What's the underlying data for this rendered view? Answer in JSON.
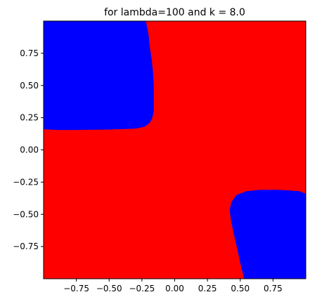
{
  "chart_data": {
    "type": "heatmap",
    "title": "for lambda=100 and k = 8.0",
    "xlabel": "",
    "ylabel": "",
    "xlim": [
      -1,
      1
    ],
    "ylim": [
      -1,
      1
    ],
    "grid": false,
    "legend": "none",
    "x_ticks": [
      {
        "value": -0.75,
        "label": "−0.75"
      },
      {
        "value": -0.5,
        "label": "−0.50"
      },
      {
        "value": -0.25,
        "label": "−0.25"
      },
      {
        "value": 0.0,
        "label": "0.00"
      },
      {
        "value": 0.25,
        "label": "0.25"
      },
      {
        "value": 0.5,
        "label": "0.50"
      },
      {
        "value": 0.75,
        "label": "0.75"
      }
    ],
    "y_ticks": [
      {
        "value": 0.75,
        "label": "0.75"
      },
      {
        "value": 0.5,
        "label": "0.50"
      },
      {
        "value": 0.25,
        "label": "0.25"
      },
      {
        "value": 0.0,
        "label": "0.00"
      },
      {
        "value": -0.25,
        "label": "−0.25"
      },
      {
        "value": -0.5,
        "label": "−0.50"
      },
      {
        "value": -0.75,
        "label": "−0.75"
      }
    ],
    "background_class_color": "#ff0000",
    "region_color": "#0000ff",
    "regions": [
      {
        "boundary": [
          [
            -1.0,
            1.0
          ],
          [
            -0.22,
            1.0
          ],
          [
            -0.2,
            0.9
          ],
          [
            -0.19,
            0.8
          ],
          [
            -0.175,
            0.7
          ],
          [
            -0.165,
            0.6
          ],
          [
            -0.16,
            0.5
          ],
          [
            -0.16,
            0.4
          ],
          [
            -0.16,
            0.3
          ],
          [
            -0.17,
            0.25
          ],
          [
            -0.19,
            0.21
          ],
          [
            -0.23,
            0.18
          ],
          [
            -0.3,
            0.165
          ],
          [
            -0.5,
            0.158
          ],
          [
            -0.75,
            0.155
          ],
          [
            -0.9,
            0.155
          ],
          [
            -1.0,
            0.16
          ]
        ]
      },
      {
        "boundary": [
          [
            0.53,
            -1.0
          ],
          [
            1.0,
            -1.0
          ],
          [
            1.0,
            -0.34
          ],
          [
            0.95,
            -0.32
          ],
          [
            0.8,
            -0.31
          ],
          [
            0.65,
            -0.31
          ],
          [
            0.55,
            -0.32
          ],
          [
            0.47,
            -0.35
          ],
          [
            0.43,
            -0.41
          ],
          [
            0.42,
            -0.47
          ],
          [
            0.43,
            -0.55
          ],
          [
            0.45,
            -0.65
          ],
          [
            0.48,
            -0.78
          ],
          [
            0.5,
            -0.88
          ],
          [
            0.53,
            -1.0
          ]
        ]
      }
    ]
  }
}
